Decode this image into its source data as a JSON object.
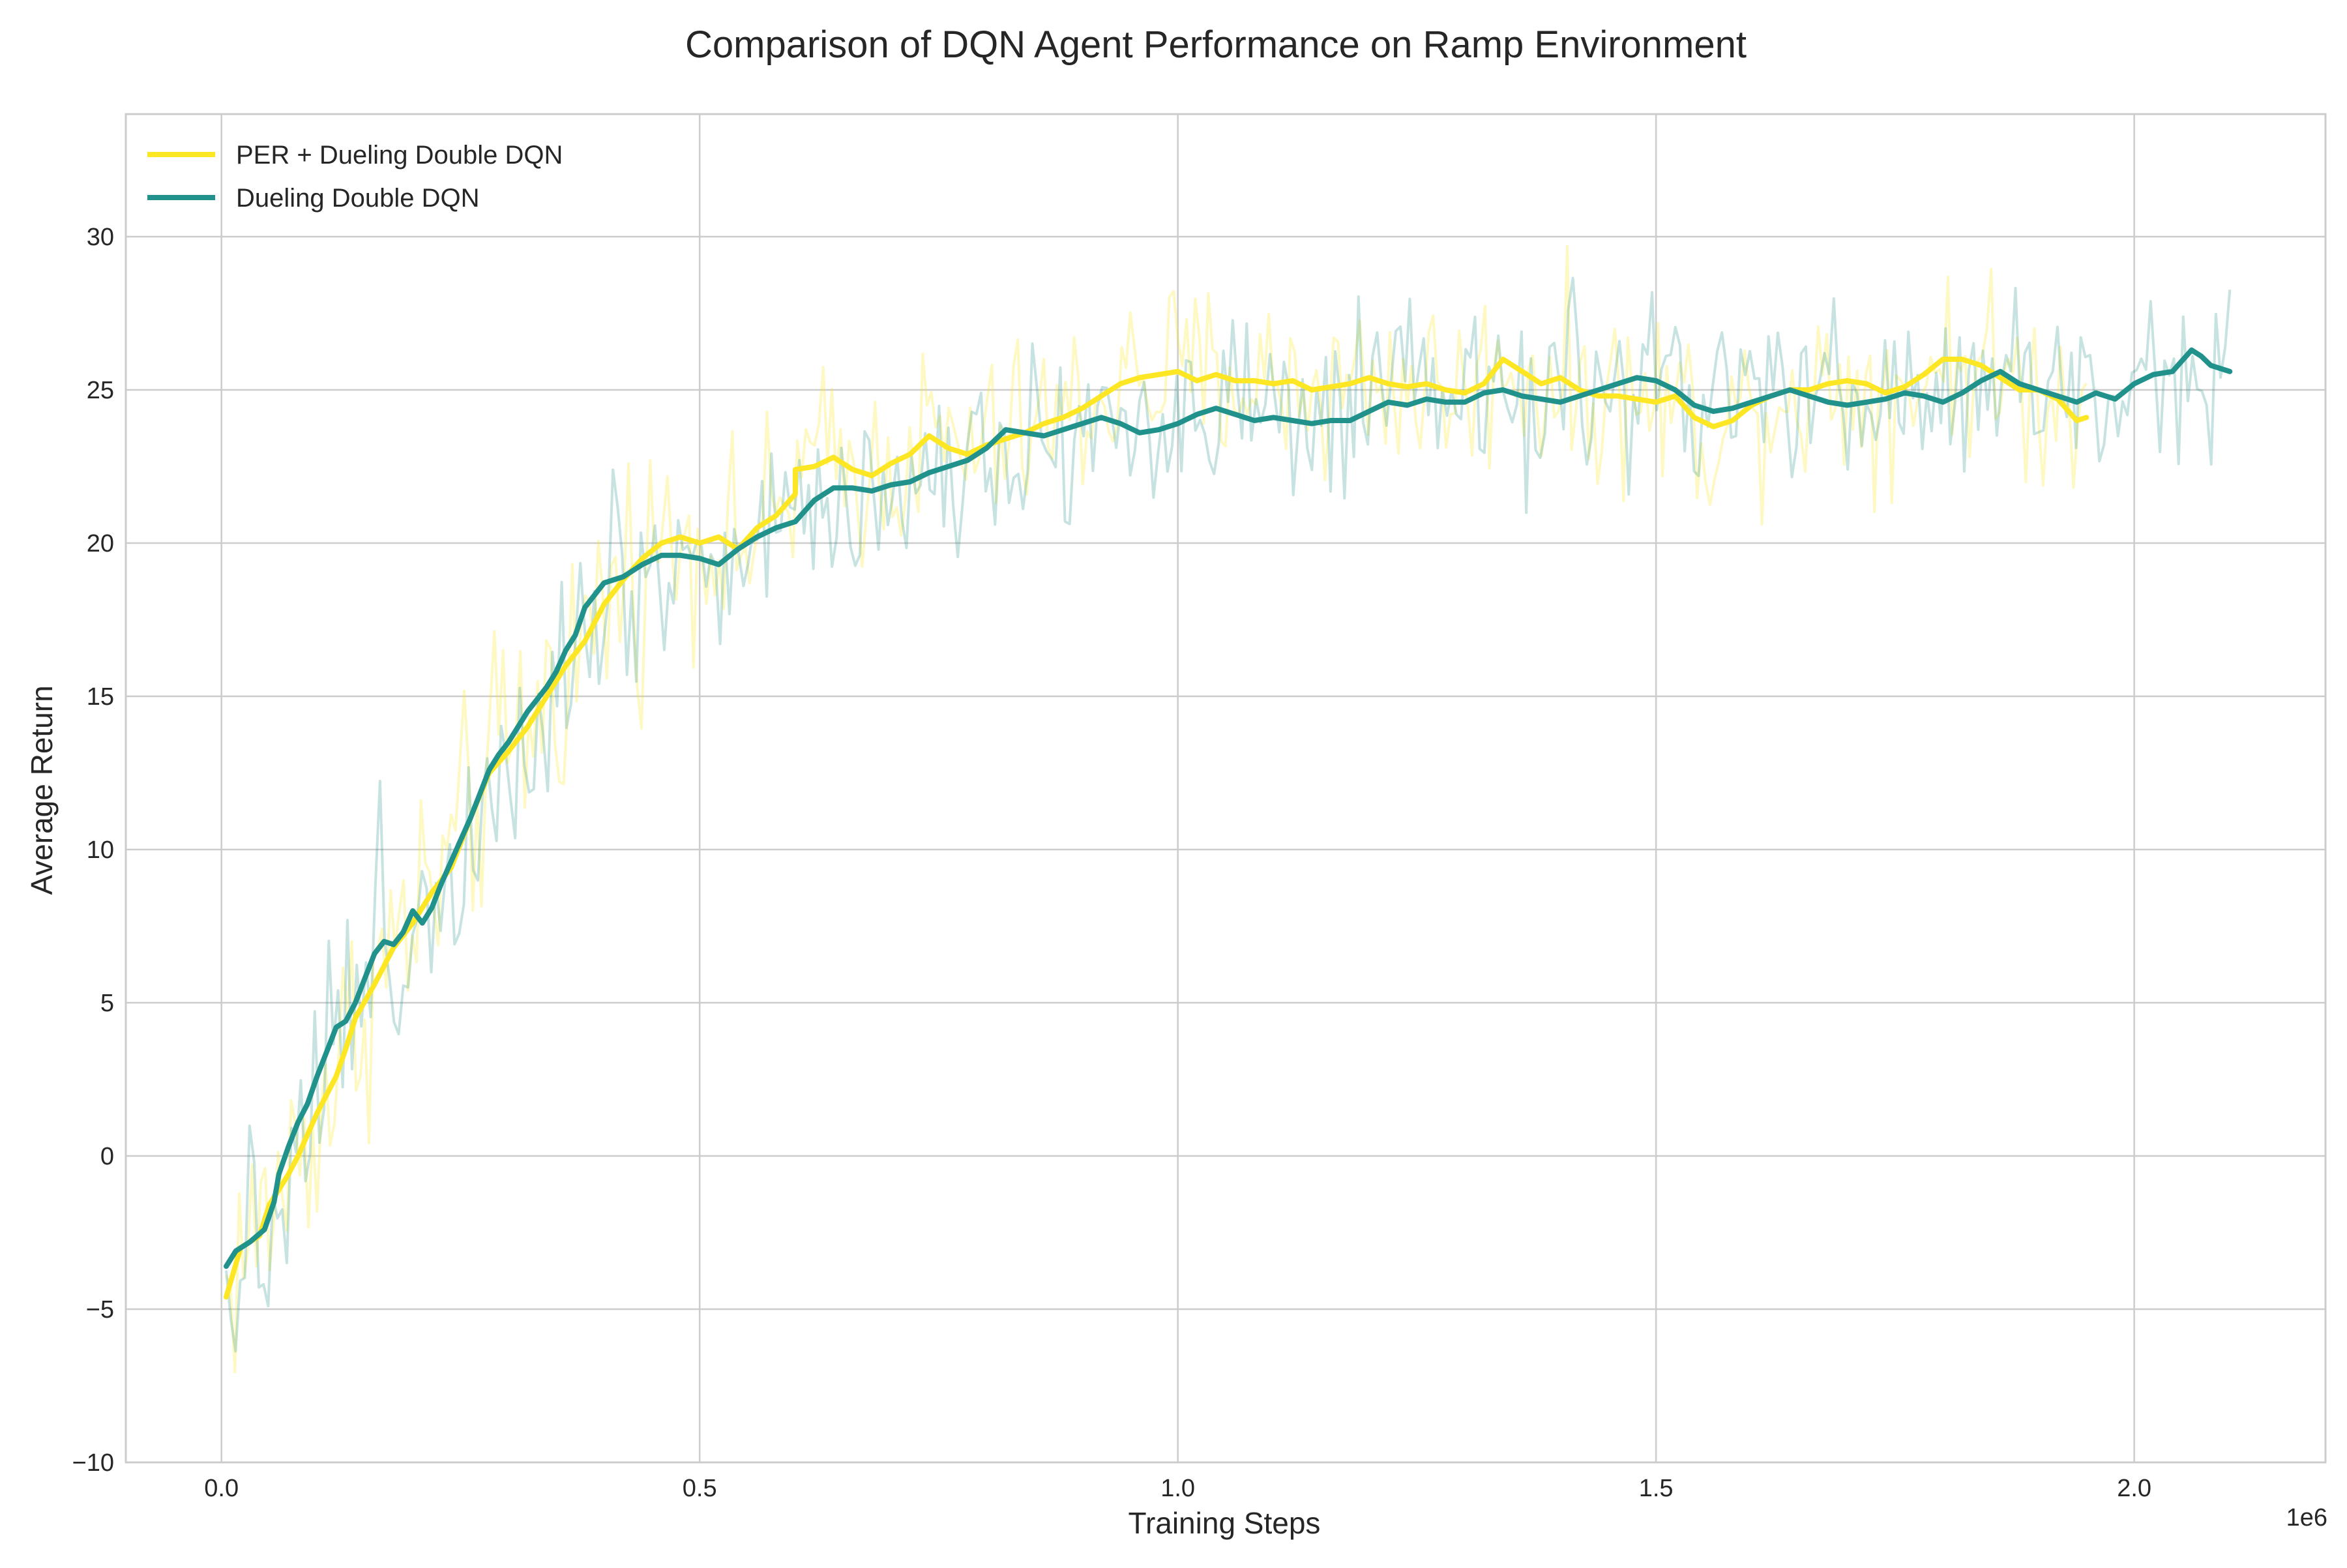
{
  "chart_data": {
    "type": "line",
    "title": "Comparison of DQN Agent Performance on Ramp Environment",
    "xlabel": "Training Steps",
    "ylabel": "Average Return",
    "x_offset_label": "1e6",
    "xlim": [
      -0.1,
      2.2
    ],
    "ylim": [
      -10,
      34
    ],
    "x_ticks": [
      0.0,
      0.5,
      1.0,
      1.5,
      2.0
    ],
    "x_tick_labels": [
      "0.0",
      "0.5",
      "1.0",
      "1.5",
      "2.0"
    ],
    "y_ticks": [
      -10,
      -5,
      0,
      5,
      10,
      15,
      20,
      25,
      30
    ],
    "y_tick_labels": [
      "−10",
      "−5",
      "0",
      "5",
      "10",
      "15",
      "20",
      "25",
      "30"
    ],
    "grid": true,
    "legend_position": "top-left",
    "series": [
      {
        "name": "PER + Dueling Double DQN",
        "color": "#fde725",
        "x_end": 1.95,
        "smoothed": [
          [
            0.005,
            -4.6
          ],
          [
            0.02,
            -3.0
          ],
          [
            0.04,
            -2.6
          ],
          [
            0.05,
            -1.6
          ],
          [
            0.07,
            -0.6
          ],
          [
            0.08,
            0.0
          ],
          [
            0.1,
            1.4
          ],
          [
            0.12,
            2.6
          ],
          [
            0.13,
            3.5
          ],
          [
            0.14,
            4.5
          ],
          [
            0.16,
            5.6
          ],
          [
            0.18,
            6.8
          ],
          [
            0.2,
            7.6
          ],
          [
            0.22,
            8.6
          ],
          [
            0.24,
            9.4
          ],
          [
            0.26,
            11.0
          ],
          [
            0.28,
            12.5
          ],
          [
            0.3,
            13.2
          ],
          [
            0.32,
            14.0
          ],
          [
            0.34,
            15.0
          ],
          [
            0.36,
            16.0
          ],
          [
            0.38,
            16.8
          ],
          [
            0.4,
            18.0
          ],
          [
            0.42,
            18.8
          ],
          [
            0.44,
            19.5
          ],
          [
            0.46,
            20.0
          ],
          [
            0.48,
            20.2
          ],
          [
            0.5,
            20.0
          ],
          [
            0.52,
            20.2
          ],
          [
            0.54,
            19.8
          ],
          [
            0.56,
            20.5
          ],
          [
            0.58,
            20.9
          ],
          [
            0.6,
            21.6
          ],
          [
            0.6,
            22.4
          ],
          [
            0.62,
            22.5
          ],
          [
            0.64,
            22.8
          ],
          [
            0.66,
            22.4
          ],
          [
            0.68,
            22.2
          ],
          [
            0.7,
            22.6
          ],
          [
            0.72,
            22.9
          ],
          [
            0.74,
            23.5
          ],
          [
            0.76,
            23.1
          ],
          [
            0.78,
            22.9
          ],
          [
            0.8,
            23.2
          ],
          [
            0.82,
            23.4
          ],
          [
            0.84,
            23.6
          ],
          [
            0.86,
            23.9
          ],
          [
            0.88,
            24.1
          ],
          [
            0.9,
            24.4
          ],
          [
            0.92,
            24.8
          ],
          [
            0.94,
            25.2
          ],
          [
            0.96,
            25.4
          ],
          [
            0.98,
            25.5
          ],
          [
            1.0,
            25.6
          ],
          [
            1.02,
            25.3
          ],
          [
            1.04,
            25.5
          ],
          [
            1.06,
            25.3
          ],
          [
            1.08,
            25.3
          ],
          [
            1.1,
            25.2
          ],
          [
            1.12,
            25.3
          ],
          [
            1.14,
            25.0
          ],
          [
            1.16,
            25.1
          ],
          [
            1.18,
            25.2
          ],
          [
            1.2,
            25.4
          ],
          [
            1.22,
            25.2
          ],
          [
            1.24,
            25.1
          ],
          [
            1.26,
            25.2
          ],
          [
            1.28,
            25.0
          ],
          [
            1.3,
            24.9
          ],
          [
            1.32,
            25.2
          ],
          [
            1.34,
            26.0
          ],
          [
            1.36,
            25.6
          ],
          [
            1.38,
            25.2
          ],
          [
            1.4,
            25.4
          ],
          [
            1.42,
            25.0
          ],
          [
            1.44,
            24.8
          ],
          [
            1.46,
            24.8
          ],
          [
            1.48,
            24.7
          ],
          [
            1.5,
            24.6
          ],
          [
            1.52,
            24.8
          ],
          [
            1.54,
            24.1
          ],
          [
            1.56,
            23.8
          ],
          [
            1.58,
            24.0
          ],
          [
            1.6,
            24.5
          ],
          [
            1.62,
            24.8
          ],
          [
            1.64,
            25.0
          ],
          [
            1.66,
            25.0
          ],
          [
            1.68,
            25.2
          ],
          [
            1.7,
            25.3
          ],
          [
            1.72,
            25.2
          ],
          [
            1.74,
            24.9
          ],
          [
            1.76,
            25.1
          ],
          [
            1.78,
            25.5
          ],
          [
            1.8,
            26.0
          ],
          [
            1.82,
            26.0
          ],
          [
            1.84,
            25.8
          ],
          [
            1.86,
            25.4
          ],
          [
            1.88,
            25.0
          ],
          [
            1.9,
            25.0
          ],
          [
            1.92,
            24.7
          ],
          [
            1.94,
            24.0
          ],
          [
            1.95,
            24.1
          ]
        ]
      },
      {
        "name": "Dueling Double DQN",
        "color": "#21918c",
        "x_end": 2.1,
        "smoothed": [
          [
            0.005,
            -3.6
          ],
          [
            0.015,
            -3.1
          ],
          [
            0.03,
            -2.8
          ],
          [
            0.045,
            -2.4
          ],
          [
            0.055,
            -1.5
          ],
          [
            0.06,
            -0.6
          ],
          [
            0.07,
            0.3
          ],
          [
            0.08,
            1.1
          ],
          [
            0.09,
            1.7
          ],
          [
            0.1,
            2.6
          ],
          [
            0.11,
            3.4
          ],
          [
            0.12,
            4.2
          ],
          [
            0.13,
            4.4
          ],
          [
            0.14,
            5.0
          ],
          [
            0.15,
            5.8
          ],
          [
            0.16,
            6.6
          ],
          [
            0.17,
            7.0
          ],
          [
            0.18,
            6.9
          ],
          [
            0.19,
            7.3
          ],
          [
            0.2,
            8.0
          ],
          [
            0.21,
            7.6
          ],
          [
            0.22,
            8.1
          ],
          [
            0.23,
            8.9
          ],
          [
            0.24,
            9.6
          ],
          [
            0.25,
            10.3
          ],
          [
            0.26,
            11.0
          ],
          [
            0.27,
            11.8
          ],
          [
            0.28,
            12.6
          ],
          [
            0.29,
            13.1
          ],
          [
            0.3,
            13.5
          ],
          [
            0.31,
            14.0
          ],
          [
            0.32,
            14.5
          ],
          [
            0.33,
            14.9
          ],
          [
            0.34,
            15.3
          ],
          [
            0.35,
            15.8
          ],
          [
            0.36,
            16.5
          ],
          [
            0.37,
            17.0
          ],
          [
            0.38,
            17.9
          ],
          [
            0.39,
            18.3
          ],
          [
            0.4,
            18.7
          ],
          [
            0.42,
            18.9
          ],
          [
            0.44,
            19.3
          ],
          [
            0.46,
            19.6
          ],
          [
            0.48,
            19.6
          ],
          [
            0.5,
            19.5
          ],
          [
            0.52,
            19.3
          ],
          [
            0.54,
            19.8
          ],
          [
            0.56,
            20.2
          ],
          [
            0.58,
            20.5
          ],
          [
            0.6,
            20.7
          ],
          [
            0.62,
            21.4
          ],
          [
            0.64,
            21.8
          ],
          [
            0.66,
            21.8
          ],
          [
            0.68,
            21.7
          ],
          [
            0.7,
            21.9
          ],
          [
            0.72,
            22.0
          ],
          [
            0.74,
            22.3
          ],
          [
            0.76,
            22.5
          ],
          [
            0.78,
            22.7
          ],
          [
            0.8,
            23.1
          ],
          [
            0.82,
            23.7
          ],
          [
            0.84,
            23.6
          ],
          [
            0.86,
            23.5
          ],
          [
            0.88,
            23.7
          ],
          [
            0.9,
            23.9
          ],
          [
            0.92,
            24.1
          ],
          [
            0.94,
            23.9
          ],
          [
            0.96,
            23.6
          ],
          [
            0.98,
            23.7
          ],
          [
            1.0,
            23.9
          ],
          [
            1.02,
            24.2
          ],
          [
            1.04,
            24.4
          ],
          [
            1.06,
            24.2
          ],
          [
            1.08,
            24.0
          ],
          [
            1.1,
            24.1
          ],
          [
            1.12,
            24.0
          ],
          [
            1.14,
            23.9
          ],
          [
            1.16,
            24.0
          ],
          [
            1.18,
            24.0
          ],
          [
            1.2,
            24.3
          ],
          [
            1.22,
            24.6
          ],
          [
            1.24,
            24.5
          ],
          [
            1.26,
            24.7
          ],
          [
            1.28,
            24.6
          ],
          [
            1.3,
            24.6
          ],
          [
            1.32,
            24.9
          ],
          [
            1.34,
            25.0
          ],
          [
            1.36,
            24.8
          ],
          [
            1.38,
            24.7
          ],
          [
            1.4,
            24.6
          ],
          [
            1.42,
            24.8
          ],
          [
            1.44,
            25.0
          ],
          [
            1.46,
            25.2
          ],
          [
            1.48,
            25.4
          ],
          [
            1.5,
            25.3
          ],
          [
            1.52,
            25.0
          ],
          [
            1.54,
            24.5
          ],
          [
            1.56,
            24.3
          ],
          [
            1.58,
            24.4
          ],
          [
            1.6,
            24.6
          ],
          [
            1.62,
            24.8
          ],
          [
            1.64,
            25.0
          ],
          [
            1.66,
            24.8
          ],
          [
            1.68,
            24.6
          ],
          [
            1.7,
            24.5
          ],
          [
            1.72,
            24.6
          ],
          [
            1.74,
            24.7
          ],
          [
            1.76,
            24.9
          ],
          [
            1.78,
            24.8
          ],
          [
            1.8,
            24.6
          ],
          [
            1.82,
            24.9
          ],
          [
            1.84,
            25.3
          ],
          [
            1.86,
            25.6
          ],
          [
            1.88,
            25.2
          ],
          [
            1.9,
            25.0
          ],
          [
            1.92,
            24.8
          ],
          [
            1.94,
            24.6
          ],
          [
            1.96,
            24.9
          ],
          [
            1.98,
            24.7
          ],
          [
            2.0,
            25.2
          ],
          [
            2.02,
            25.5
          ],
          [
            2.04,
            25.6
          ],
          [
            2.06,
            26.3
          ],
          [
            2.07,
            26.1
          ],
          [
            2.08,
            25.8
          ],
          [
            2.1,
            25.6
          ]
        ]
      }
    ]
  }
}
